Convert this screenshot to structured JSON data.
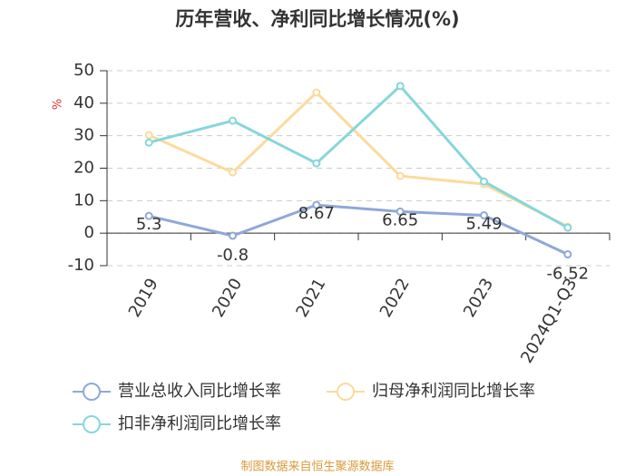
{
  "chart_data": {
    "type": "line",
    "title": "历年营收、净利同比增长情况(%)",
    "y_label": "%",
    "categories": [
      "2019",
      "2020",
      "2021",
      "2022",
      "2023",
      "2024Q1-Q3"
    ],
    "series": [
      {
        "name": "营业总收入同比增长率",
        "color": "#8fa8d8",
        "values": [
          5.3,
          -0.8,
          8.67,
          6.65,
          5.49,
          -6.52
        ],
        "labels": true
      },
      {
        "name": "归母净利润同比增长率",
        "color": "#fbdb9c",
        "values": [
          30.2,
          18.7,
          43.3,
          17.6,
          15.1,
          2.0
        ]
      },
      {
        "name": "扣非净利润同比增长率",
        "color": "#86d6db",
        "values": [
          27.9,
          34.6,
          21.5,
          45.3,
          15.9,
          1.7
        ]
      }
    ],
    "ylim": [
      -10,
      50
    ],
    "yticks": [
      -10,
      0,
      10,
      20,
      30,
      40,
      50
    ],
    "grid": true,
    "source": "制图数据来自恒生聚源数据库"
  }
}
